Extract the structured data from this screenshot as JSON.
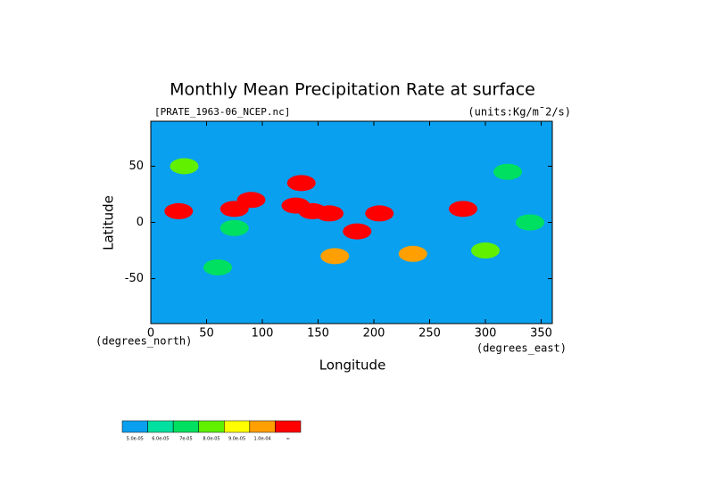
{
  "chart_data": {
    "type": "map",
    "title": "Monthly Mean Precipitation Rate at surface",
    "subtitle_left": "[PRATE_1963-06_NCEP.nc]",
    "subtitle_right": "(units:Kg/m¯2/s)",
    "x_label": "Longitude",
    "y_label": "Latitude",
    "x_unit": "(degrees_east)",
    "y_unit": "(degrees_north)",
    "xlim": [
      0,
      360
    ],
    "ylim": [
      -90,
      90
    ],
    "xticks": [
      0,
      50,
      100,
      150,
      200,
      250,
      300,
      350
    ],
    "yticks": [
      -50,
      0,
      50
    ],
    "background_color": "#0aa0f0",
    "colorbar": {
      "colors": [
        "#0aa0f0",
        "#00e0a0",
        "#00e060",
        "#60f000",
        "#ffff00",
        "#ffa000",
        "#ff0000"
      ],
      "labels": [
        "5.0e-05",
        "6.0e-05",
        "7e-05",
        "8.0e-05",
        "9.0e-05",
        "1.0e-04",
        "∞"
      ]
    },
    "regions": [
      {
        "lon": 25,
        "lat": 10,
        "level": 6
      },
      {
        "lon": 90,
        "lat": 20,
        "level": 6
      },
      {
        "lon": 75,
        "lat": 12,
        "level": 6
      },
      {
        "lon": 130,
        "lat": 15,
        "level": 6
      },
      {
        "lon": 145,
        "lat": 10,
        "level": 6
      },
      {
        "lon": 160,
        "lat": 8,
        "level": 6
      },
      {
        "lon": 205,
        "lat": 8,
        "level": 6
      },
      {
        "lon": 185,
        "lat": -8,
        "level": 6
      },
      {
        "lon": 280,
        "lat": 12,
        "level": 6
      },
      {
        "lon": 135,
        "lat": 35,
        "level": 6
      },
      {
        "lon": 75,
        "lat": -5,
        "level": 2
      },
      {
        "lon": 340,
        "lat": 0,
        "level": 2
      },
      {
        "lon": 320,
        "lat": 45,
        "level": 2
      },
      {
        "lon": 235,
        "lat": -28,
        "level": 5
      },
      {
        "lon": 165,
        "lat": -30,
        "level": 5
      },
      {
        "lon": 30,
        "lat": 50,
        "level": 3
      },
      {
        "lon": 300,
        "lat": -25,
        "level": 3
      },
      {
        "lon": 60,
        "lat": -40,
        "level": 2
      }
    ]
  }
}
